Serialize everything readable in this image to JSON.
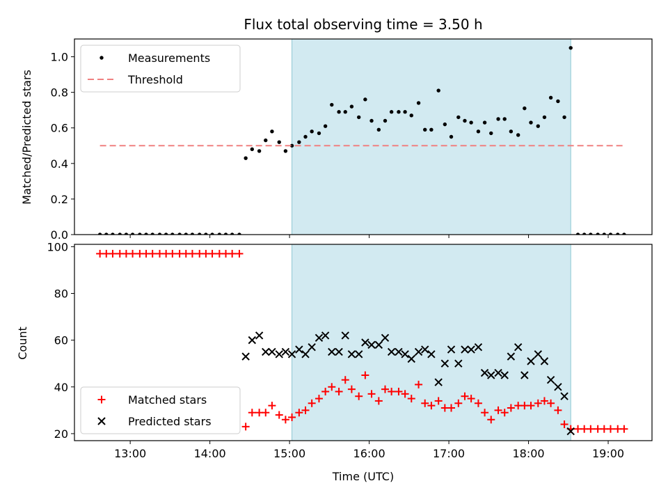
{
  "chart_data": [
    {
      "type": "scatter",
      "title": "Flux total observing time = 3.50 h",
      "xlabel": "",
      "ylabel": "Matched/Predicted stars",
      "xlim": [
        12.3,
        19.55
      ],
      "ylim": [
        0,
        1.1
      ],
      "yticks": [
        "0.0",
        "0.2",
        "0.4",
        "0.6",
        "0.8",
        "1.0"
      ],
      "shaded_region": [
        15.03,
        18.53
      ],
      "colors": {
        "shade": "#add8e6",
        "threshold": "#f08080",
        "points": "#000000"
      },
      "series": [
        {
          "name": "Measurements",
          "marker": "dot",
          "x": [
            12.62,
            12.7,
            12.78,
            12.87,
            12.95,
            13.03,
            13.12,
            13.2,
            13.28,
            13.37,
            13.45,
            13.53,
            13.62,
            13.7,
            13.78,
            13.87,
            13.95,
            14.03,
            14.12,
            14.2,
            14.28,
            14.37,
            14.45,
            14.53,
            14.62,
            14.7,
            14.78,
            14.87,
            14.95,
            15.03,
            15.12,
            15.2,
            15.28,
            15.37,
            15.45,
            15.53,
            15.62,
            15.7,
            15.78,
            15.87,
            15.95,
            16.03,
            16.12,
            16.2,
            16.28,
            16.37,
            16.45,
            16.53,
            16.62,
            16.7,
            16.78,
            16.87,
            16.95,
            17.03,
            17.12,
            17.2,
            17.28,
            17.37,
            17.45,
            17.53,
            17.62,
            17.7,
            17.78,
            17.87,
            17.95,
            18.03,
            18.12,
            18.2,
            18.28,
            18.37,
            18.45,
            18.53,
            18.62,
            18.7,
            18.78,
            18.87,
            18.95,
            19.03,
            19.12,
            19.2
          ],
          "y": [
            0,
            0,
            0,
            0,
            0,
            0,
            0,
            0,
            0,
            0,
            0,
            0,
            0,
            0,
            0,
            0,
            0,
            0,
            0,
            0,
            0,
            0,
            0.43,
            0.48,
            0.47,
            0.53,
            0.58,
            0.52,
            0.47,
            0.5,
            0.52,
            0.55,
            0.58,
            0.57,
            0.61,
            0.73,
            0.69,
            0.69,
            0.72,
            0.66,
            0.76,
            0.64,
            0.59,
            0.64,
            0.69,
            0.69,
            0.69,
            0.67,
            0.74,
            0.59,
            0.59,
            0.81,
            0.62,
            0.55,
            0.66,
            0.64,
            0.63,
            0.58,
            0.63,
            0.57,
            0.65,
            0.65,
            0.58,
            0.56,
            0.71,
            0.63,
            0.61,
            0.66,
            0.77,
            0.75,
            0.66,
            1.05,
            0,
            0,
            0,
            0,
            0,
            0,
            0,
            0
          ]
        },
        {
          "name": "Threshold",
          "style": "dashed",
          "x": [
            12.62,
            19.22
          ],
          "y": [
            0.5,
            0.5
          ]
        }
      ],
      "legend": "upper-left"
    },
    {
      "type": "scatter",
      "title": "",
      "xlabel": "Time (UTC)",
      "ylabel": "Count",
      "xlim": [
        12.3,
        19.55
      ],
      "ylim": [
        17,
        101
      ],
      "xticks": [
        "13:00",
        "14:00",
        "15:00",
        "16:00",
        "17:00",
        "18:00",
        "19:00"
      ],
      "xtick_values": [
        13,
        14,
        15,
        16,
        17,
        18,
        19
      ],
      "yticks": [
        "20",
        "40",
        "60",
        "80",
        "100"
      ],
      "shaded_region": [
        15.03,
        18.53
      ],
      "colors": {
        "shade": "#add8e6",
        "matched": "#ff0000",
        "predicted": "#000000"
      },
      "series": [
        {
          "name": "Matched stars",
          "marker": "plus",
          "x": [
            12.62,
            12.7,
            12.78,
            12.87,
            12.95,
            13.03,
            13.12,
            13.2,
            13.28,
            13.37,
            13.45,
            13.53,
            13.62,
            13.7,
            13.78,
            13.87,
            13.95,
            14.03,
            14.12,
            14.2,
            14.28,
            14.37,
            14.45,
            14.53,
            14.62,
            14.7,
            14.78,
            14.87,
            14.95,
            15.03,
            15.12,
            15.2,
            15.28,
            15.37,
            15.45,
            15.53,
            15.62,
            15.7,
            15.78,
            15.87,
            15.95,
            16.03,
            16.12,
            16.2,
            16.28,
            16.37,
            16.45,
            16.53,
            16.62,
            16.7,
            16.78,
            16.87,
            16.95,
            17.03,
            17.12,
            17.2,
            17.28,
            17.37,
            17.45,
            17.53,
            17.62,
            17.7,
            17.78,
            17.87,
            17.95,
            18.03,
            18.12,
            18.2,
            18.28,
            18.37,
            18.45,
            18.53,
            18.62,
            18.7,
            18.78,
            18.87,
            18.95,
            19.03,
            19.12,
            19.2
          ],
          "y": [
            97,
            97,
            97,
            97,
            97,
            97,
            97,
            97,
            97,
            97,
            97,
            97,
            97,
            97,
            97,
            97,
            97,
            97,
            97,
            97,
            97,
            97,
            23,
            29,
            29,
            29,
            32,
            28,
            26,
            27,
            29,
            30,
            33,
            35,
            38,
            40,
            38,
            43,
            39,
            36,
            45,
            37,
            34,
            39,
            38,
            38,
            37,
            35,
            41,
            33,
            32,
            34,
            31,
            31,
            33,
            36,
            35,
            33,
            29,
            26,
            30,
            29,
            31,
            32,
            32,
            32,
            33,
            34,
            33,
            30,
            24,
            22,
            22,
            22,
            22,
            22,
            22,
            22,
            22,
            22
          ]
        },
        {
          "name": "Predicted stars",
          "marker": "x",
          "x": [
            14.45,
            14.53,
            14.62,
            14.7,
            14.78,
            14.87,
            14.95,
            15.03,
            15.12,
            15.2,
            15.28,
            15.37,
            15.45,
            15.53,
            15.62,
            15.7,
            15.78,
            15.87,
            15.95,
            16.03,
            16.12,
            16.2,
            16.28,
            16.37,
            16.45,
            16.53,
            16.62,
            16.7,
            16.78,
            16.87,
            16.95,
            17.03,
            17.12,
            17.2,
            17.28,
            17.37,
            17.45,
            17.53,
            17.62,
            17.7,
            17.78,
            17.87,
            17.95,
            18.03,
            18.12,
            18.2,
            18.28,
            18.37,
            18.45,
            18.53
          ],
          "y": [
            53,
            60,
            62,
            55,
            55,
            54,
            55,
            54,
            56,
            54,
            57,
            61,
            62,
            55,
            55,
            62,
            54,
            54,
            59,
            58,
            58,
            61,
            55,
            55,
            54,
            52,
            55,
            56,
            54,
            42,
            50,
            56,
            50,
            56,
            56,
            57,
            46,
            45,
            46,
            45,
            53,
            57,
            45,
            51,
            54,
            51,
            43,
            40,
            36,
            21
          ]
        }
      ],
      "legend": "lower-left"
    }
  ]
}
